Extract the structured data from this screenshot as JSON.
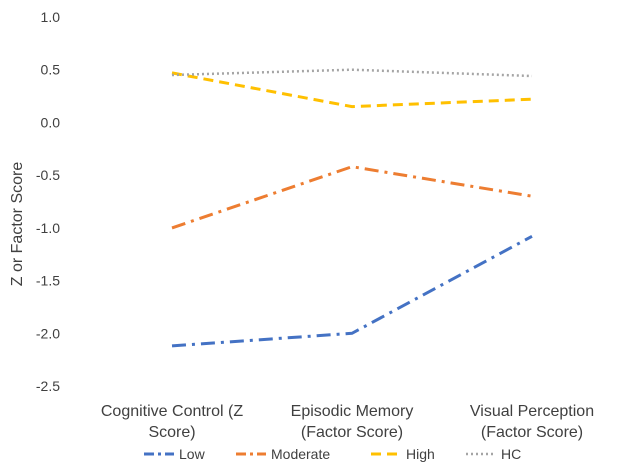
{
  "chart_data": {
    "type": "line",
    "title": "",
    "xlabel": "",
    "ylabel": "Z or Factor Score",
    "ylim": [
      -2.5,
      1.0
    ],
    "yticks": [
      "1.0",
      "0.5",
      "0.0",
      "-0.5",
      "-1.0",
      "-1.5",
      "-2.0",
      "-2.5"
    ],
    "categories": [
      [
        "Cognitive Control (Z",
        "Score)"
      ],
      [
        "Episodic Memory",
        "(Factor Score)"
      ],
      [
        "Visual Perception",
        "(Factor Score)"
      ]
    ],
    "grid": false,
    "legend_position": "bottom",
    "series": [
      {
        "name": "Low",
        "values": [
          -2.12,
          -2.0,
          -1.08
        ],
        "color": "#4472C4",
        "dash": "dash-dot"
      },
      {
        "name": "Moderate",
        "values": [
          -1.0,
          -0.42,
          -0.7
        ],
        "color": "#ED7D31",
        "dash": "dash-dot"
      },
      {
        "name": "High",
        "values": [
          0.47,
          0.15,
          0.22
        ],
        "color": "#FFC000",
        "dash": "dash"
      },
      {
        "name": "HC",
        "values": [
          0.45,
          0.5,
          0.44
        ],
        "color": "#A5A5A5",
        "dash": "dot"
      }
    ]
  }
}
